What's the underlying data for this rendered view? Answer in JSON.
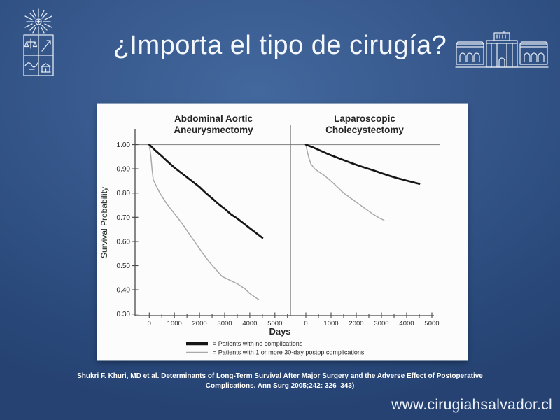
{
  "slide": {
    "title": "¿Importa el tipo de cirugía?",
    "citation": {
      "line1": "Shukri F. Khuri, MD et al. Determinants of Long-Term Survival After Major Surgery and the Adverse Effect of Postoperative",
      "line2": "Complications. Ann Surg 2005;242:  326–343)"
    },
    "website": "www.cirugiahsalvador.cl"
  },
  "icons": {
    "university_logo": "universidad-de-chile-crest",
    "hospital_building": "hospital-del-salvador-facade"
  },
  "colors": {
    "background_outer": "#254272",
    "background_inner": "#42689d",
    "title_text": "#f4f7fb",
    "panel_background": "#fcfcfc",
    "axis": "#4a4a4a",
    "reference_line": "#8d8d8d",
    "chart_text": "#262626",
    "curve_no_complications": "#161616",
    "curve_complications": "#a9a9a9"
  },
  "chart_data": {
    "type": "line",
    "chart_kind": "kaplan-meier-survival",
    "ylabel": "Survival Probability",
    "xlabel": "Days",
    "yticks": [
      "1.00",
      "0.90",
      "0.80",
      "0.70",
      "0.60",
      "0.50",
      "0.40",
      "0.30"
    ],
    "xticks": [
      0,
      1000,
      2000,
      3000,
      4000,
      5000
    ],
    "xminor_step": 500,
    "ylim": [
      0.3,
      1.0
    ],
    "xlim": [
      0,
      5000
    ],
    "grid": false,
    "reference_line_y": 1.0,
    "legend_position": "bottom-center",
    "legend": [
      {
        "swatch": "thick-black-line",
        "label": "= Patients with no complications"
      },
      {
        "swatch": "thin-gray-line",
        "label": "= Patients with 1 or more 30-day postop complications"
      }
    ],
    "panels": [
      {
        "title": [
          "Abdominal Aortic",
          "Aneurysmectomy"
        ],
        "series": [
          {
            "name": "Patients with no complications",
            "points": [
              [
                0,
                1.0
              ],
              [
                250,
                0.975
              ],
              [
                500,
                0.952
              ],
              [
                750,
                0.928
              ],
              [
                1000,
                0.905
              ],
              [
                1250,
                0.885
              ],
              [
                1500,
                0.865
              ],
              [
                1750,
                0.845
              ],
              [
                2000,
                0.825
              ],
              [
                2250,
                0.8
              ],
              [
                2500,
                0.778
              ],
              [
                2750,
                0.755
              ],
              [
                3000,
                0.735
              ],
              [
                3250,
                0.712
              ],
              [
                3500,
                0.695
              ],
              [
                3750,
                0.675
              ],
              [
                4000,
                0.655
              ],
              [
                4250,
                0.635
              ],
              [
                4500,
                0.615
              ]
            ]
          },
          {
            "name": "Patients with 1 or more 30-day postop complications",
            "points": [
              [
                0,
                1.0
              ],
              [
                60,
                0.955
              ],
              [
                110,
                0.9
              ],
              [
                160,
                0.855
              ],
              [
                250,
                0.835
              ],
              [
                420,
                0.8
              ],
              [
                700,
                0.755
              ],
              [
                1000,
                0.715
              ],
              [
                1300,
                0.675
              ],
              [
                1600,
                0.63
              ],
              [
                1900,
                0.585
              ],
              [
                2100,
                0.555
              ],
              [
                2350,
                0.52
              ],
              [
                2600,
                0.49
              ],
              [
                2900,
                0.455
              ],
              [
                3200,
                0.44
              ],
              [
                3500,
                0.425
              ],
              [
                3800,
                0.405
              ],
              [
                4000,
                0.385
              ],
              [
                4200,
                0.37
              ],
              [
                4350,
                0.36
              ]
            ]
          }
        ]
      },
      {
        "title": [
          "Laparoscopic",
          "Cholecystectomy"
        ],
        "series": [
          {
            "name": "Patients with no complications",
            "points": [
              [
                0,
                1.0
              ],
              [
                300,
                0.988
              ],
              [
                600,
                0.974
              ],
              [
                900,
                0.96
              ],
              [
                1200,
                0.948
              ],
              [
                1500,
                0.936
              ],
              [
                1800,
                0.924
              ],
              [
                2100,
                0.913
              ],
              [
                2400,
                0.903
              ],
              [
                2700,
                0.893
              ],
              [
                3000,
                0.882
              ],
              [
                3300,
                0.872
              ],
              [
                3600,
                0.862
              ],
              [
                3900,
                0.854
              ],
              [
                4200,
                0.846
              ],
              [
                4500,
                0.838
              ]
            ]
          },
          {
            "name": "Patients with 1 or more 30-day postop complications",
            "points": [
              [
                0,
                1.0
              ],
              [
                60,
                0.97
              ],
              [
                120,
                0.945
              ],
              [
                200,
                0.92
              ],
              [
                350,
                0.9
              ],
              [
                550,
                0.885
              ],
              [
                700,
                0.875
              ],
              [
                900,
                0.858
              ],
              [
                1100,
                0.84
              ],
              [
                1300,
                0.82
              ],
              [
                1500,
                0.8
              ],
              [
                1700,
                0.785
              ],
              [
                1900,
                0.77
              ],
              [
                2100,
                0.755
              ],
              [
                2300,
                0.74
              ],
              [
                2500,
                0.725
              ],
              [
                2700,
                0.71
              ],
              [
                2900,
                0.698
              ],
              [
                3100,
                0.688
              ]
            ]
          }
        ]
      }
    ]
  }
}
